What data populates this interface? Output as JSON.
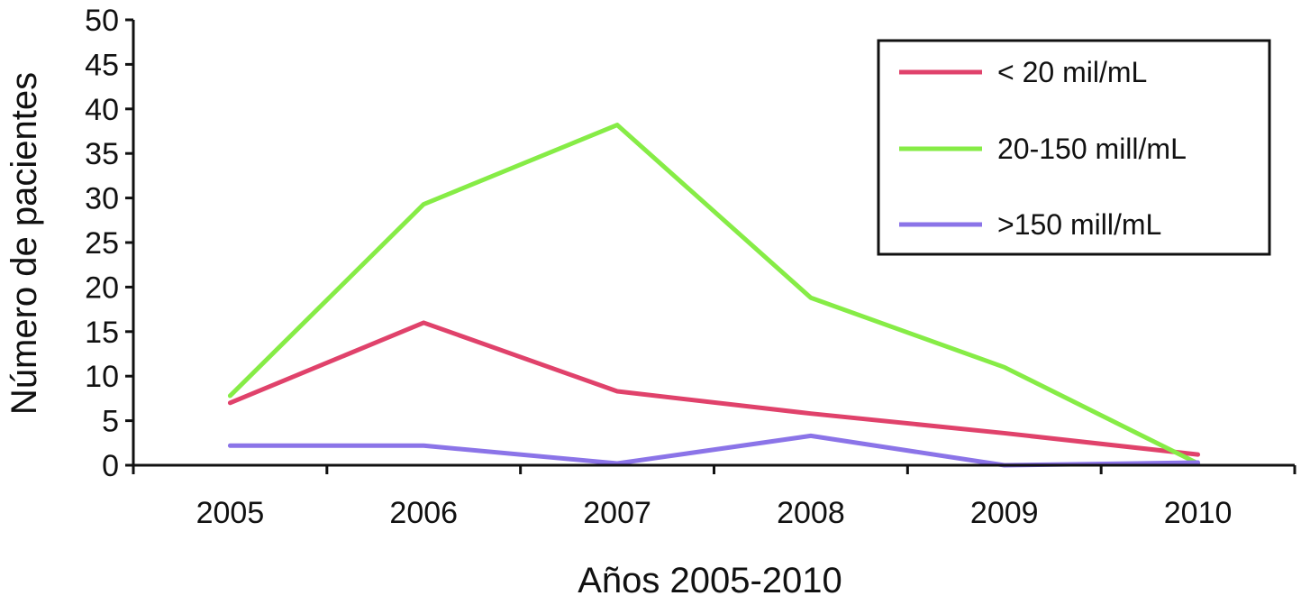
{
  "chart_data": {
    "type": "line",
    "title": "",
    "xlabel": "Años 2005-2010",
    "ylabel": "Número de pacientes",
    "ylim": [
      0,
      50
    ],
    "y_ticks": [
      0,
      5,
      10,
      15,
      20,
      25,
      30,
      35,
      40,
      45,
      50
    ],
    "categories": [
      "2005",
      "2006",
      "2007",
      "2008",
      "2009",
      "2010"
    ],
    "grid": false,
    "legend_position": "top-right",
    "series": [
      {
        "name": "< 20 mil/mL",
        "color": "#e0426b",
        "values": [
          7,
          16,
          8.3,
          5.8,
          3.6,
          1.2
        ]
      },
      {
        "name": "20-150 mill/mL",
        "color": "#86ec46",
        "values": [
          7.8,
          29.3,
          38.2,
          18.8,
          11,
          0.2
        ]
      },
      {
        "name": ">150 mill/mL",
        "color": "#8b74e8",
        "values": [
          2.2,
          2.2,
          0.2,
          3.3,
          0,
          0.3
        ]
      }
    ]
  }
}
